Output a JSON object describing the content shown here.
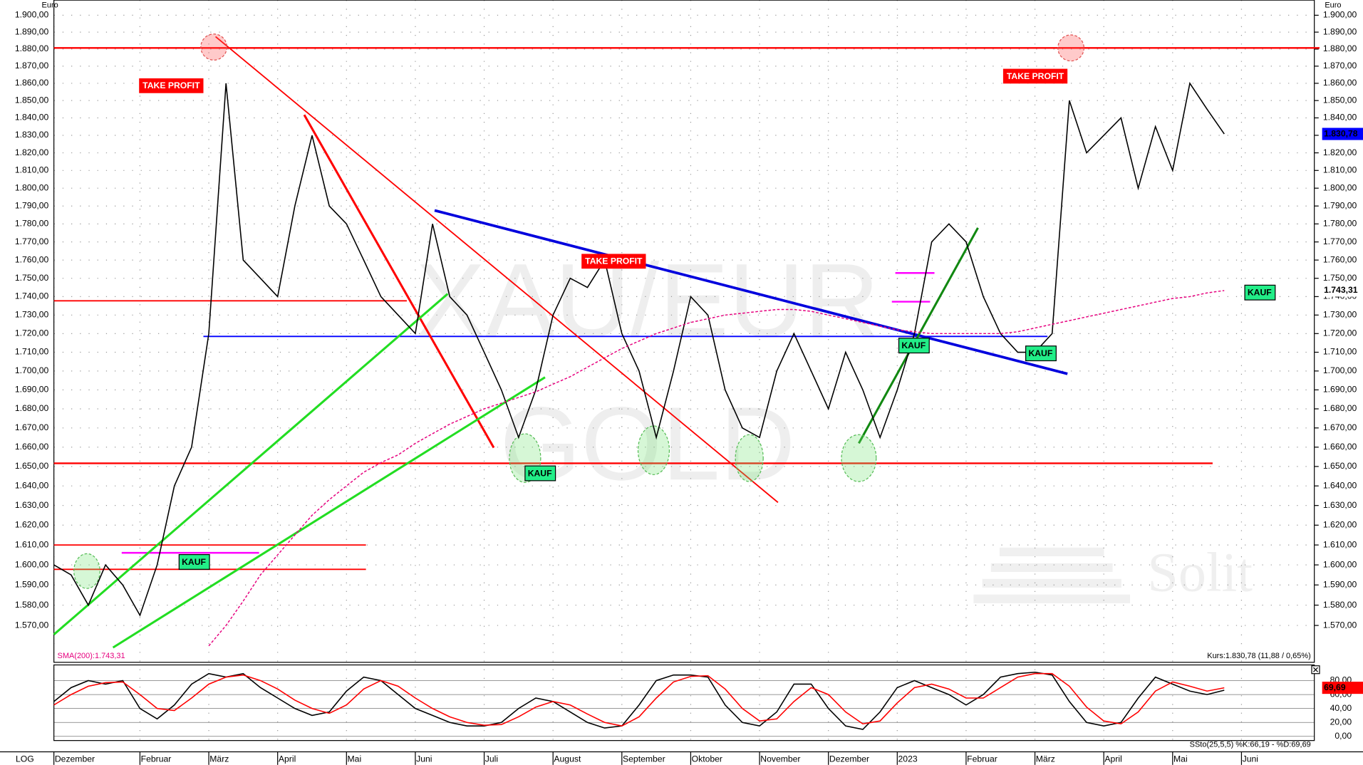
{
  "chart_data": [
    {
      "type": "line",
      "y_label": "Euro",
      "scale_label": "LOG",
      "log_scale": true,
      "grid": true,
      "watermark": [
        "XAU/EUR",
        "GOLD"
      ],
      "logo": "Solit",
      "categories": [
        "Dezember",
        null,
        null,
        null,
        null,
        "Februar",
        null,
        null,
        null,
        "März",
        null,
        null,
        null,
        "April",
        null,
        null,
        null,
        "Mai",
        null,
        null,
        null,
        "Juni",
        null,
        null,
        null,
        "Juli",
        null,
        null,
        null,
        "August",
        null,
        null,
        null,
        "September",
        null,
        null,
        null,
        "Oktober",
        null,
        null,
        null,
        "November",
        null,
        null,
        null,
        "Dezember",
        null,
        null,
        null,
        "2023",
        null,
        null,
        null,
        "Februar",
        null,
        null,
        null,
        "März",
        null,
        null,
        null,
        "April",
        null,
        null,
        null,
        "Mai",
        null,
        null,
        null,
        "Juni"
      ],
      "series": [
        {
          "color": "#000000",
          "values": [
            1600,
            1595,
            1580,
            1600,
            1590,
            1575,
            1600,
            1640,
            1660,
            1720,
            1860,
            1760,
            1750,
            1740,
            1790,
            1830,
            1790,
            1780,
            1760,
            1740,
            1730,
            1720,
            1780,
            1740,
            1730,
            1710,
            1690,
            1665,
            1690,
            1730,
            1750,
            1745,
            1760,
            1720,
            1700,
            1665,
            1700,
            1740,
            1730,
            1690,
            1670,
            1665,
            1700,
            1720,
            1700,
            1680,
            1710,
            1690,
            1665,
            1690,
            1720,
            1770,
            1780,
            1770,
            1740,
            1720,
            1710,
            1710,
            1720,
            1850,
            1820,
            1830,
            1840,
            1800,
            1835,
            1810,
            1860,
            1845,
            1830.78,
            null
          ]
        },
        {
          "color": "#e6007e",
          "dashed": true,
          "values": [
            null,
            null,
            null,
            null,
            null,
            null,
            null,
            null,
            null,
            1560,
            1570,
            1582,
            1595,
            1605,
            1615,
            1625,
            1633,
            1640,
            1647,
            1652,
            1656,
            1662,
            1667,
            1672,
            1676,
            1680,
            1683,
            1686,
            1689,
            1693,
            1697,
            1702,
            1707,
            1712,
            1716,
            1720,
            1723,
            1726,
            1728,
            1730,
            1731,
            1732,
            1733,
            1733,
            1732,
            1730,
            1728,
            1726,
            1724,
            1722,
            1721,
            1720,
            1720,
            1720,
            1720,
            1720,
            1721,
            1723,
            1725,
            1727,
            1729,
            1731,
            1733,
            1735,
            1737,
            1739,
            1740,
            1742,
            1743.31,
            null
          ]
        }
      ],
      "ylim": [
        1552,
        1909
      ],
      "yticks": [
        {
          "value": 1570,
          "label": "1.570,00"
        },
        {
          "value": 1580,
          "label": "1.580,00"
        },
        {
          "value": 1590,
          "label": "1.590,00"
        },
        {
          "value": 1600,
          "label": "1.600,00"
        },
        {
          "value": 1610,
          "label": "1.610,00"
        },
        {
          "value": 1620,
          "label": "1.620,00"
        },
        {
          "value": 1630,
          "label": "1.630,00"
        },
        {
          "value": 1640,
          "label": "1.640,00"
        },
        {
          "value": 1650,
          "label": "1.650,00"
        },
        {
          "value": 1660,
          "label": "1.660,00"
        },
        {
          "value": 1670,
          "label": "1.670,00"
        },
        {
          "value": 1680,
          "label": "1.680,00"
        },
        {
          "value": 1690,
          "label": "1.690,00"
        },
        {
          "value": 1700,
          "label": "1.700,00"
        },
        {
          "value": 1710,
          "label": "1.710,00"
        },
        {
          "value": 1720,
          "label": "1.720,00"
        },
        {
          "value": 1730,
          "label": "1.730,00"
        },
        {
          "value": 1740,
          "label": "1.740,00"
        },
        {
          "value": 1750,
          "label": "1.750,00"
        },
        {
          "value": 1760,
          "label": "1.760,00"
        },
        {
          "value": 1770,
          "label": "1.770,00"
        },
        {
          "value": 1780,
          "label": "1.780,00"
        },
        {
          "value": 1790,
          "label": "1.790,00"
        },
        {
          "value": 1800,
          "label": "1.800,00"
        },
        {
          "value": 1810,
          "label": "1.810,00"
        },
        {
          "value": 1820,
          "label": "1.820,00"
        },
        {
          "value": 1830,
          "label": "1.830,00"
        },
        {
          "value": 1840,
          "label": "1.840,00"
        },
        {
          "value": 1850,
          "label": "1.850,00"
        },
        {
          "value": 1860,
          "label": "1.860,00"
        },
        {
          "value": 1870,
          "label": "1.870,00"
        },
        {
          "value": 1880,
          "label": "1.880,00"
        },
        {
          "value": 1890,
          "label": "1.890,00"
        },
        {
          "value": 1900,
          "label": "1.900,00"
        }
      ],
      "last_price": {
        "value": 1830.78,
        "label": "1.830,78"
      },
      "sma_last": {
        "value": 1743.31,
        "label": "1.743,31"
      },
      "price_info": "Kurs:1.830,78 (11,88 / 0,65%)",
      "sma_info": "SMA(200):1.743,31",
      "annotations": [
        "TAKE PROFIT",
        "TAKE PROFIT",
        "TAKE PROFIT",
        "KAUF",
        "KAUF",
        "KAUF",
        "KAUF",
        "KAUF"
      ]
    },
    {
      "type": "line",
      "info": "SSto(25,5,5) %K:66,19 - %D:69,69",
      "series": [
        {
          "color": "#000000",
          "values": [
            50,
            70,
            80,
            75,
            80,
            40,
            25,
            45,
            75,
            90,
            85,
            90,
            70,
            55,
            40,
            30,
            35,
            65,
            85,
            80,
            60,
            40,
            30,
            20,
            15,
            15,
            20,
            40,
            55,
            50,
            35,
            20,
            12,
            15,
            45,
            80,
            88,
            88,
            85,
            45,
            20,
            15,
            35,
            75,
            75,
            40,
            15,
            10,
            35,
            70,
            80,
            70,
            60,
            45,
            60,
            85,
            90,
            92,
            88,
            50,
            20,
            15,
            20,
            55,
            85,
            75,
            65,
            60,
            66.19,
            null
          ]
        },
        {
          "color": "#ff0000",
          "values": [
            45,
            60,
            72,
            77,
            78,
            60,
            40,
            37,
            55,
            75,
            85,
            88,
            80,
            68,
            52,
            40,
            33,
            45,
            68,
            80,
            72,
            55,
            40,
            28,
            20,
            16,
            17,
            28,
            42,
            50,
            45,
            32,
            20,
            15,
            28,
            55,
            78,
            86,
            87,
            68,
            40,
            22,
            25,
            50,
            70,
            60,
            35,
            18,
            22,
            48,
            70,
            75,
            68,
            55,
            55,
            70,
            85,
            90,
            90,
            72,
            42,
            22,
            18,
            35,
            65,
            78,
            72,
            65,
            69.69,
            null
          ]
        }
      ],
      "ylim": [
        -6,
        102.5
      ],
      "yticks": [
        {
          "value": 0,
          "label": "0,00"
        },
        {
          "value": 20,
          "label": "20,00"
        },
        {
          "value": 40,
          "label": "40,00"
        },
        {
          "value": 60,
          "label": "60,00"
        },
        {
          "value": 80,
          "label": "80,00"
        }
      ],
      "last": {
        "value": 69.69,
        "label": "69,69"
      }
    }
  ]
}
